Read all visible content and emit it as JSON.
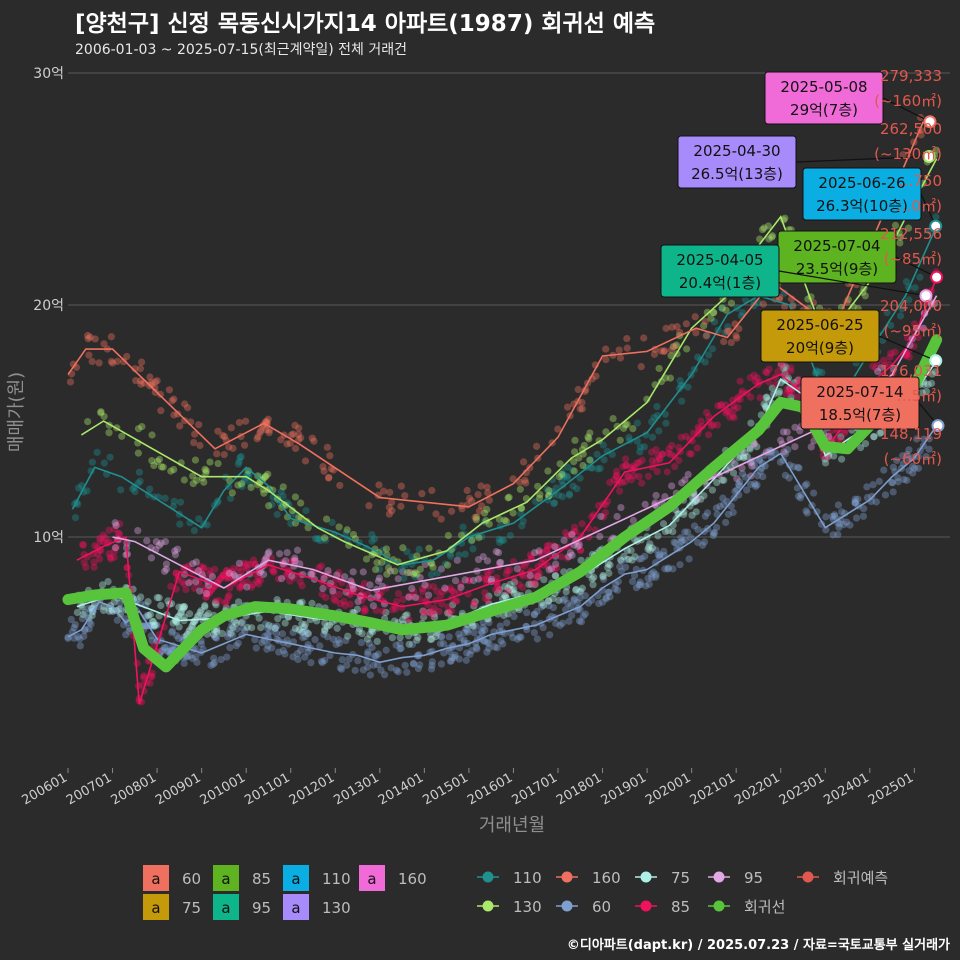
{
  "header": {
    "title": "[양천구] 신정 목동신시가지14 아파트(1987) 회귀선 예측",
    "subtitle": "2006-01-03 ~ 2025-07-15(최근계약일) 전체 거래건",
    "credit": "©디아파트(dapt.kr) / 2025.07.23 / 자료=국토교통부 실거래가"
  },
  "colors": {
    "background": "#2b2b2b",
    "grid": "#5a5a5a",
    "s60": "#7f9fd0",
    "s75": "#aef0e6",
    "s85": "#f0125e",
    "s95": "#e3a6e6",
    "s110": "#1f8f8f",
    "s130": "#a9e86a",
    "s160": "#f0705f",
    "regression": "#58c43c",
    "forecast": "#e0584e"
  },
  "chart_data": {
    "type": "scatter",
    "xlabel": "거래년월",
    "ylabel": "매매가(원)",
    "ylim": [
      0,
      30
    ],
    "y_unit": "억",
    "y_ticks": [
      {
        "value": 10,
        "label": "10억"
      },
      {
        "value": 20,
        "label": "20억"
      },
      {
        "value": 30,
        "label": "30억"
      }
    ],
    "x_range": [
      2006.0,
      2025.8
    ],
    "x_ticks": [
      "200601",
      "200701",
      "200801",
      "200901",
      "201001",
      "201101",
      "201201",
      "201301",
      "201401",
      "201501",
      "201601",
      "201701",
      "201801",
      "201901",
      "202001",
      "202101",
      "202201",
      "202301",
      "202401",
      "202501"
    ],
    "series": [
      {
        "name": "60",
        "points": [
          [
            2006.0,
            5.7
          ],
          [
            2006.3,
            6.0
          ],
          [
            2006.7,
            7.2
          ],
          [
            2007.0,
            7.0
          ],
          [
            2007.3,
            6.3
          ],
          [
            2007.6,
            6.8
          ],
          [
            2008.0,
            5.6
          ],
          [
            2008.5,
            5.3
          ],
          [
            2009.0,
            5.0
          ],
          [
            2009.5,
            5.4
          ],
          [
            2010.0,
            5.8
          ],
          [
            2010.5,
            5.6
          ],
          [
            2011.0,
            5.4
          ],
          [
            2011.5,
            5.2
          ],
          [
            2012.0,
            5.0
          ],
          [
            2012.5,
            4.9
          ],
          [
            2013.0,
            4.6
          ],
          [
            2013.5,
            4.8
          ],
          [
            2014.0,
            4.9
          ],
          [
            2014.5,
            5.2
          ],
          [
            2015.0,
            5.4
          ],
          [
            2015.5,
            5.8
          ],
          [
            2016.0,
            6.0
          ],
          [
            2016.5,
            6.2
          ],
          [
            2017.0,
            6.6
          ],
          [
            2017.5,
            7.0
          ],
          [
            2018.0,
            7.8
          ],
          [
            2018.5,
            8.4
          ],
          [
            2019.0,
            8.6
          ],
          [
            2019.5,
            9.2
          ],
          [
            2020.0,
            9.8
          ],
          [
            2020.5,
            10.6
          ],
          [
            2021.0,
            11.8
          ],
          [
            2021.5,
            13.0
          ],
          [
            2022.0,
            13.6
          ],
          [
            2022.5,
            12.0
          ],
          [
            2023.0,
            10.4
          ],
          [
            2023.5,
            11.0
          ],
          [
            2024.0,
            11.6
          ],
          [
            2024.5,
            12.6
          ],
          [
            2025.0,
            13.4
          ],
          [
            2025.5,
            14.8
          ]
        ]
      },
      {
        "name": "75",
        "points": [
          [
            2006.2,
            7.0
          ],
          [
            2007.0,
            7.5
          ],
          [
            2008.5,
            6.4
          ],
          [
            2009.5,
            6.5
          ],
          [
            2010.5,
            6.8
          ],
          [
            2011.5,
            6.5
          ],
          [
            2012.5,
            6.3
          ],
          [
            2013.5,
            6.0
          ],
          [
            2014.5,
            6.3
          ],
          [
            2015.5,
            7.1
          ],
          [
            2016.5,
            7.6
          ],
          [
            2017.5,
            8.3
          ],
          [
            2018.5,
            9.5
          ],
          [
            2019.5,
            10.5
          ],
          [
            2020.5,
            12.5
          ],
          [
            2021.5,
            14.6
          ],
          [
            2022.0,
            16.8
          ],
          [
            2022.6,
            16.0
          ],
          [
            2023.0,
            13.5
          ],
          [
            2023.5,
            14.2
          ],
          [
            2024.0,
            14.8
          ],
          [
            2024.5,
            15.6
          ],
          [
            2025.0,
            16.2
          ],
          [
            2025.5,
            17.6
          ]
        ]
      },
      {
        "name": "85",
        "points": [
          [
            2006.2,
            9.0
          ],
          [
            2006.8,
            9.6
          ],
          [
            2007.3,
            10.0
          ],
          [
            2007.6,
            2.8
          ],
          [
            2008.5,
            8.5
          ],
          [
            2009.5,
            7.8
          ],
          [
            2010.5,
            8.8
          ],
          [
            2011.5,
            8.2
          ],
          [
            2012.5,
            7.5
          ],
          [
            2013.5,
            7.0
          ],
          [
            2014.5,
            7.3
          ],
          [
            2015.5,
            8.0
          ],
          [
            2016.5,
            8.6
          ],
          [
            2017.5,
            10.0
          ],
          [
            2018.5,
            12.8
          ],
          [
            2019.5,
            13.2
          ],
          [
            2020.5,
            15.2
          ],
          [
            2021.5,
            16.6
          ],
          [
            2022.0,
            17.0
          ],
          [
            2022.5,
            16.2
          ],
          [
            2023.0,
            13.8
          ],
          [
            2023.5,
            15.0
          ],
          [
            2024.0,
            16.6
          ],
          [
            2024.5,
            17.4
          ],
          [
            2025.0,
            18.6
          ],
          [
            2025.5,
            21.2
          ]
        ]
      },
      {
        "name": "95",
        "points": [
          [
            2007.0,
            10.0
          ],
          [
            2007.5,
            9.8
          ],
          [
            2009.5,
            7.8
          ],
          [
            2010.5,
            9.0
          ],
          [
            2011.5,
            8.6
          ],
          [
            2012.8,
            7.7
          ],
          [
            2016.5,
            9.0
          ],
          [
            2023.0,
            14.8
          ],
          [
            2024.5,
            17.0
          ],
          [
            2025.5,
            20.4
          ]
        ]
      },
      {
        "name": "110",
        "points": [
          [
            2006.1,
            11.2
          ],
          [
            2006.6,
            13.0
          ],
          [
            2007.2,
            12.6
          ],
          [
            2009.0,
            10.4
          ],
          [
            2009.5,
            12.0
          ],
          [
            2010.0,
            13.0
          ],
          [
            2010.5,
            12.2
          ],
          [
            2011.0,
            10.8
          ],
          [
            2012.0,
            10.2
          ],
          [
            2012.7,
            9.6
          ],
          [
            2013.5,
            8.8
          ],
          [
            2014.2,
            9.0
          ],
          [
            2015.0,
            10.0
          ],
          [
            2016.0,
            10.6
          ],
          [
            2017.0,
            12.0
          ],
          [
            2018.0,
            13.5
          ],
          [
            2019.0,
            14.5
          ],
          [
            2020.0,
            17.0
          ],
          [
            2020.8,
            19.6
          ],
          [
            2021.5,
            20.4
          ],
          [
            2022.2,
            20.0
          ],
          [
            2022.8,
            17.0
          ],
          [
            2023.2,
            15.5
          ],
          [
            2024.0,
            18.0
          ],
          [
            2024.8,
            20.4
          ],
          [
            2025.5,
            23.4
          ]
        ]
      },
      {
        "name": "130",
        "points": [
          [
            2006.3,
            14.4
          ],
          [
            2006.8,
            15.0
          ],
          [
            2009.0,
            12.6
          ],
          [
            2010.0,
            12.6
          ],
          [
            2010.5,
            12.0
          ],
          [
            2011.6,
            10.4
          ],
          [
            2012.2,
            9.8
          ],
          [
            2013.4,
            8.8
          ],
          [
            2014.5,
            9.4
          ],
          [
            2015.3,
            10.6
          ],
          [
            2016.3,
            11.5
          ],
          [
            2017.3,
            13.4
          ],
          [
            2018.0,
            14.2
          ],
          [
            2019.0,
            15.8
          ],
          [
            2020.0,
            19.0
          ],
          [
            2020.8,
            20.4
          ],
          [
            2021.4,
            22.3
          ],
          [
            2022.0,
            23.8
          ],
          [
            2023.0,
            18.5
          ],
          [
            2024.0,
            21.0
          ],
          [
            2024.6,
            23.0
          ],
          [
            2025.0,
            24.5
          ],
          [
            2025.5,
            26.3
          ]
        ]
      },
      {
        "name": "160",
        "points": [
          [
            2006.0,
            17.0
          ],
          [
            2006.4,
            18.1
          ],
          [
            2007.0,
            18.1
          ],
          [
            2009.3,
            13.8
          ],
          [
            2009.8,
            14.3
          ],
          [
            2010.4,
            14.9
          ],
          [
            2011.2,
            14.0
          ],
          [
            2013.0,
            11.7
          ],
          [
            2015.0,
            11.3
          ],
          [
            2016.0,
            12.3
          ],
          [
            2017.0,
            14.3
          ],
          [
            2018.0,
            17.8
          ],
          [
            2019.0,
            18.0
          ],
          [
            2020.1,
            19.0
          ],
          [
            2020.8,
            18.6
          ],
          [
            2021.8,
            21.0
          ],
          [
            2023.2,
            19.0
          ],
          [
            2025.2,
            27.9
          ]
        ]
      }
    ],
    "regression_line": [
      [
        2006.0,
        7.3
      ],
      [
        2006.6,
        7.5
      ],
      [
        2007.3,
        7.6
      ],
      [
        2007.7,
        5.2
      ],
      [
        2008.2,
        4.4
      ],
      [
        2009.0,
        6.0
      ],
      [
        2009.5,
        6.6
      ],
      [
        2010.2,
        7.0
      ],
      [
        2011.0,
        6.9
      ],
      [
        2012.0,
        6.6
      ],
      [
        2012.8,
        6.3
      ],
      [
        2013.5,
        6.0
      ],
      [
        2014.5,
        6.2
      ],
      [
        2015.5,
        6.8
      ],
      [
        2016.5,
        7.4
      ],
      [
        2017.5,
        8.5
      ],
      [
        2018.5,
        10.0
      ],
      [
        2019.5,
        11.3
      ],
      [
        2020.5,
        13.0
      ],
      [
        2021.5,
        14.6
      ],
      [
        2022.0,
        15.8
      ],
      [
        2022.5,
        15.6
      ],
      [
        2023.0,
        13.9
      ],
      [
        2023.5,
        13.8
      ],
      [
        2024.0,
        14.8
      ],
      [
        2024.5,
        15.6
      ],
      [
        2025.0,
        16.5
      ],
      [
        2025.5,
        18.5
      ]
    ],
    "legend_label_types": [
      "60",
      "85",
      "110",
      "160",
      "75",
      "95",
      "130"
    ],
    "legend_series": [
      "110",
      "160",
      "75",
      "95",
      "회귀예측",
      "130",
      "60",
      "85",
      "회귀선"
    ],
    "callouts": [
      {
        "date": "2025-05-08",
        "value": "29억(7층)",
        "series": "160",
        "x": 2025.35,
        "y": 27.9
      },
      {
        "date": "2025-04-30",
        "value": "26.5억(13층)",
        "series": "130",
        "x": 2025.33,
        "y": 26.4
      },
      {
        "date": "2025-06-26",
        "value": "26.3억(10층)",
        "series": "110",
        "x": 2025.48,
        "y": 23.4
      },
      {
        "date": "2025-07-04",
        "value": "23.5억(9층)",
        "series": "85",
        "x": 2025.5,
        "y": 21.2
      },
      {
        "date": "2025-04-05",
        "value": "20.4억(1층)",
        "series": "95",
        "x": 2025.26,
        "y": 20.4
      },
      {
        "date": "2025-06-25",
        "value": "20억(9층)",
        "series": "75",
        "x": 2025.48,
        "y": 17.6
      },
      {
        "date": "2025-07-14",
        "value": "18.5억(7층)",
        "series": "60",
        "x": 2025.53,
        "y": 14.8
      }
    ],
    "forecast_labels": [
      {
        "price": "279,333",
        "area": "(~160㎡)"
      },
      {
        "price": "262,500",
        "area": "(~130㎡)"
      },
      {
        "price": "…750",
        "area": "…0㎡)"
      },
      {
        "price": "212,556",
        "area": "(~85㎡)"
      },
      {
        "price": "204,000",
        "area": "(~95㎡)"
      },
      {
        "price": "176,031",
        "area": "…5㎡)"
      },
      {
        "price": "148,119",
        "area": "(~60㎡)"
      }
    ]
  },
  "legend_box_colors": {
    "60": "#f0705f",
    "85": "#5db320",
    "110": "#0aaee3",
    "160": "#f06bd8",
    "75": "#c49a0a",
    "95": "#0fb58a",
    "130": "#a78bfa"
  },
  "legend_glyph": "a"
}
